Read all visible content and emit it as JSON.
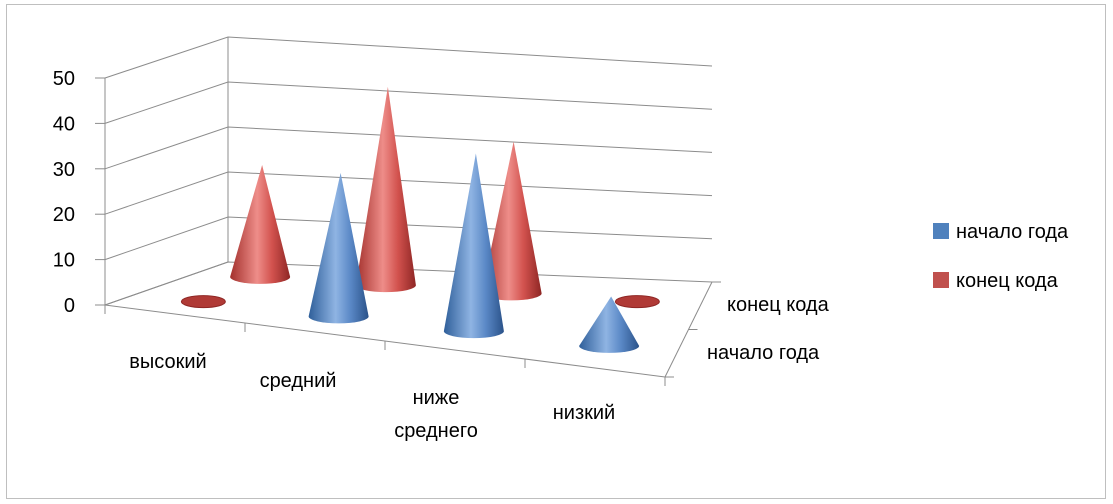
{
  "chart_data": {
    "type": "bar",
    "shape": "cone-3d",
    "categories": [
      "высокий",
      "средний",
      "ниже среднего",
      "низкий"
    ],
    "series": [
      {
        "name": "начало года",
        "values": [
          0,
          33,
          42,
          12
        ],
        "color": "#4f81bd"
      },
      {
        "name": "конец кода",
        "values": [
          25,
          45,
          35,
          0
        ],
        "color": "#c0504d"
      }
    ],
    "ylim": [
      0,
      50
    ],
    "yticks": [
      0,
      10,
      20,
      30,
      40,
      50
    ],
    "depth_labels": [
      "начало года",
      "конец кода"
    ],
    "grid": true,
    "legend": "right"
  }
}
